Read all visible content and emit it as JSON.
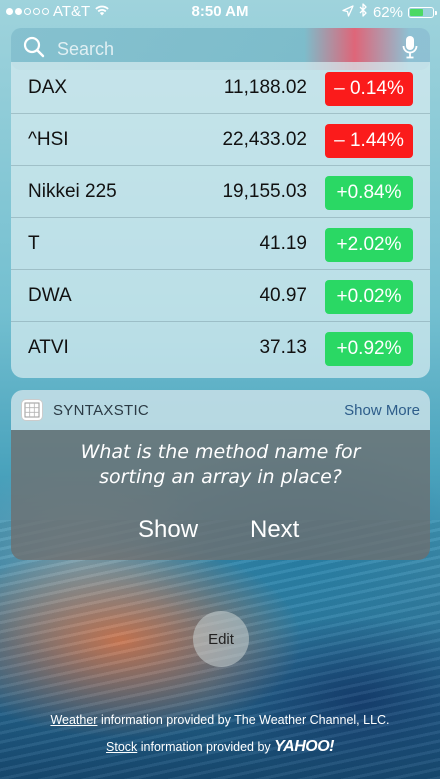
{
  "status_bar": {
    "carrier": "AT&T",
    "time": "8:50 AM",
    "battery_percent": "62%",
    "battery_level": 0.62,
    "icons": [
      "signal-dots-icon",
      "wifi-icon",
      "location-arrow-icon",
      "bluetooth-icon",
      "battery-icon"
    ]
  },
  "search": {
    "placeholder": "Search",
    "icons": [
      "search-icon",
      "microphone-icon"
    ]
  },
  "stocks": {
    "colors": {
      "up": "#2ad864",
      "down": "#fb1b1b"
    },
    "rows": [
      {
        "symbol": "DAX",
        "price": "11,188.02",
        "change": "– 0.14%",
        "direction": "down"
      },
      {
        "symbol": "^HSI",
        "price": "22,433.02",
        "change": "– 1.44%",
        "direction": "down"
      },
      {
        "symbol": "Nikkei 225",
        "price": "19,155.03",
        "change": "+0.84%",
        "direction": "up"
      },
      {
        "symbol": "T",
        "price": "41.19",
        "change": "+2.02%",
        "direction": "up"
      },
      {
        "symbol": "DWA",
        "price": "40.97",
        "change": "+0.02%",
        "direction": "up"
      },
      {
        "symbol": "ATVI",
        "price": "37.13",
        "change": "+0.92%",
        "direction": "up"
      }
    ]
  },
  "syntaxstic": {
    "app_name": "SYNTAXSTIC",
    "show_more": "Show More",
    "question_line1": "What is the method name for",
    "question_line2": "sorting an array in place?",
    "show_button": "Show",
    "next_button": "Next"
  },
  "edit_button": "Edit",
  "footer": {
    "weather_link": "Weather",
    "weather_text": " information provided by The Weather Channel, LLC.",
    "stock_link": "Stock",
    "stock_text": " information provided by ",
    "yahoo_logo": "YAHOO!"
  }
}
